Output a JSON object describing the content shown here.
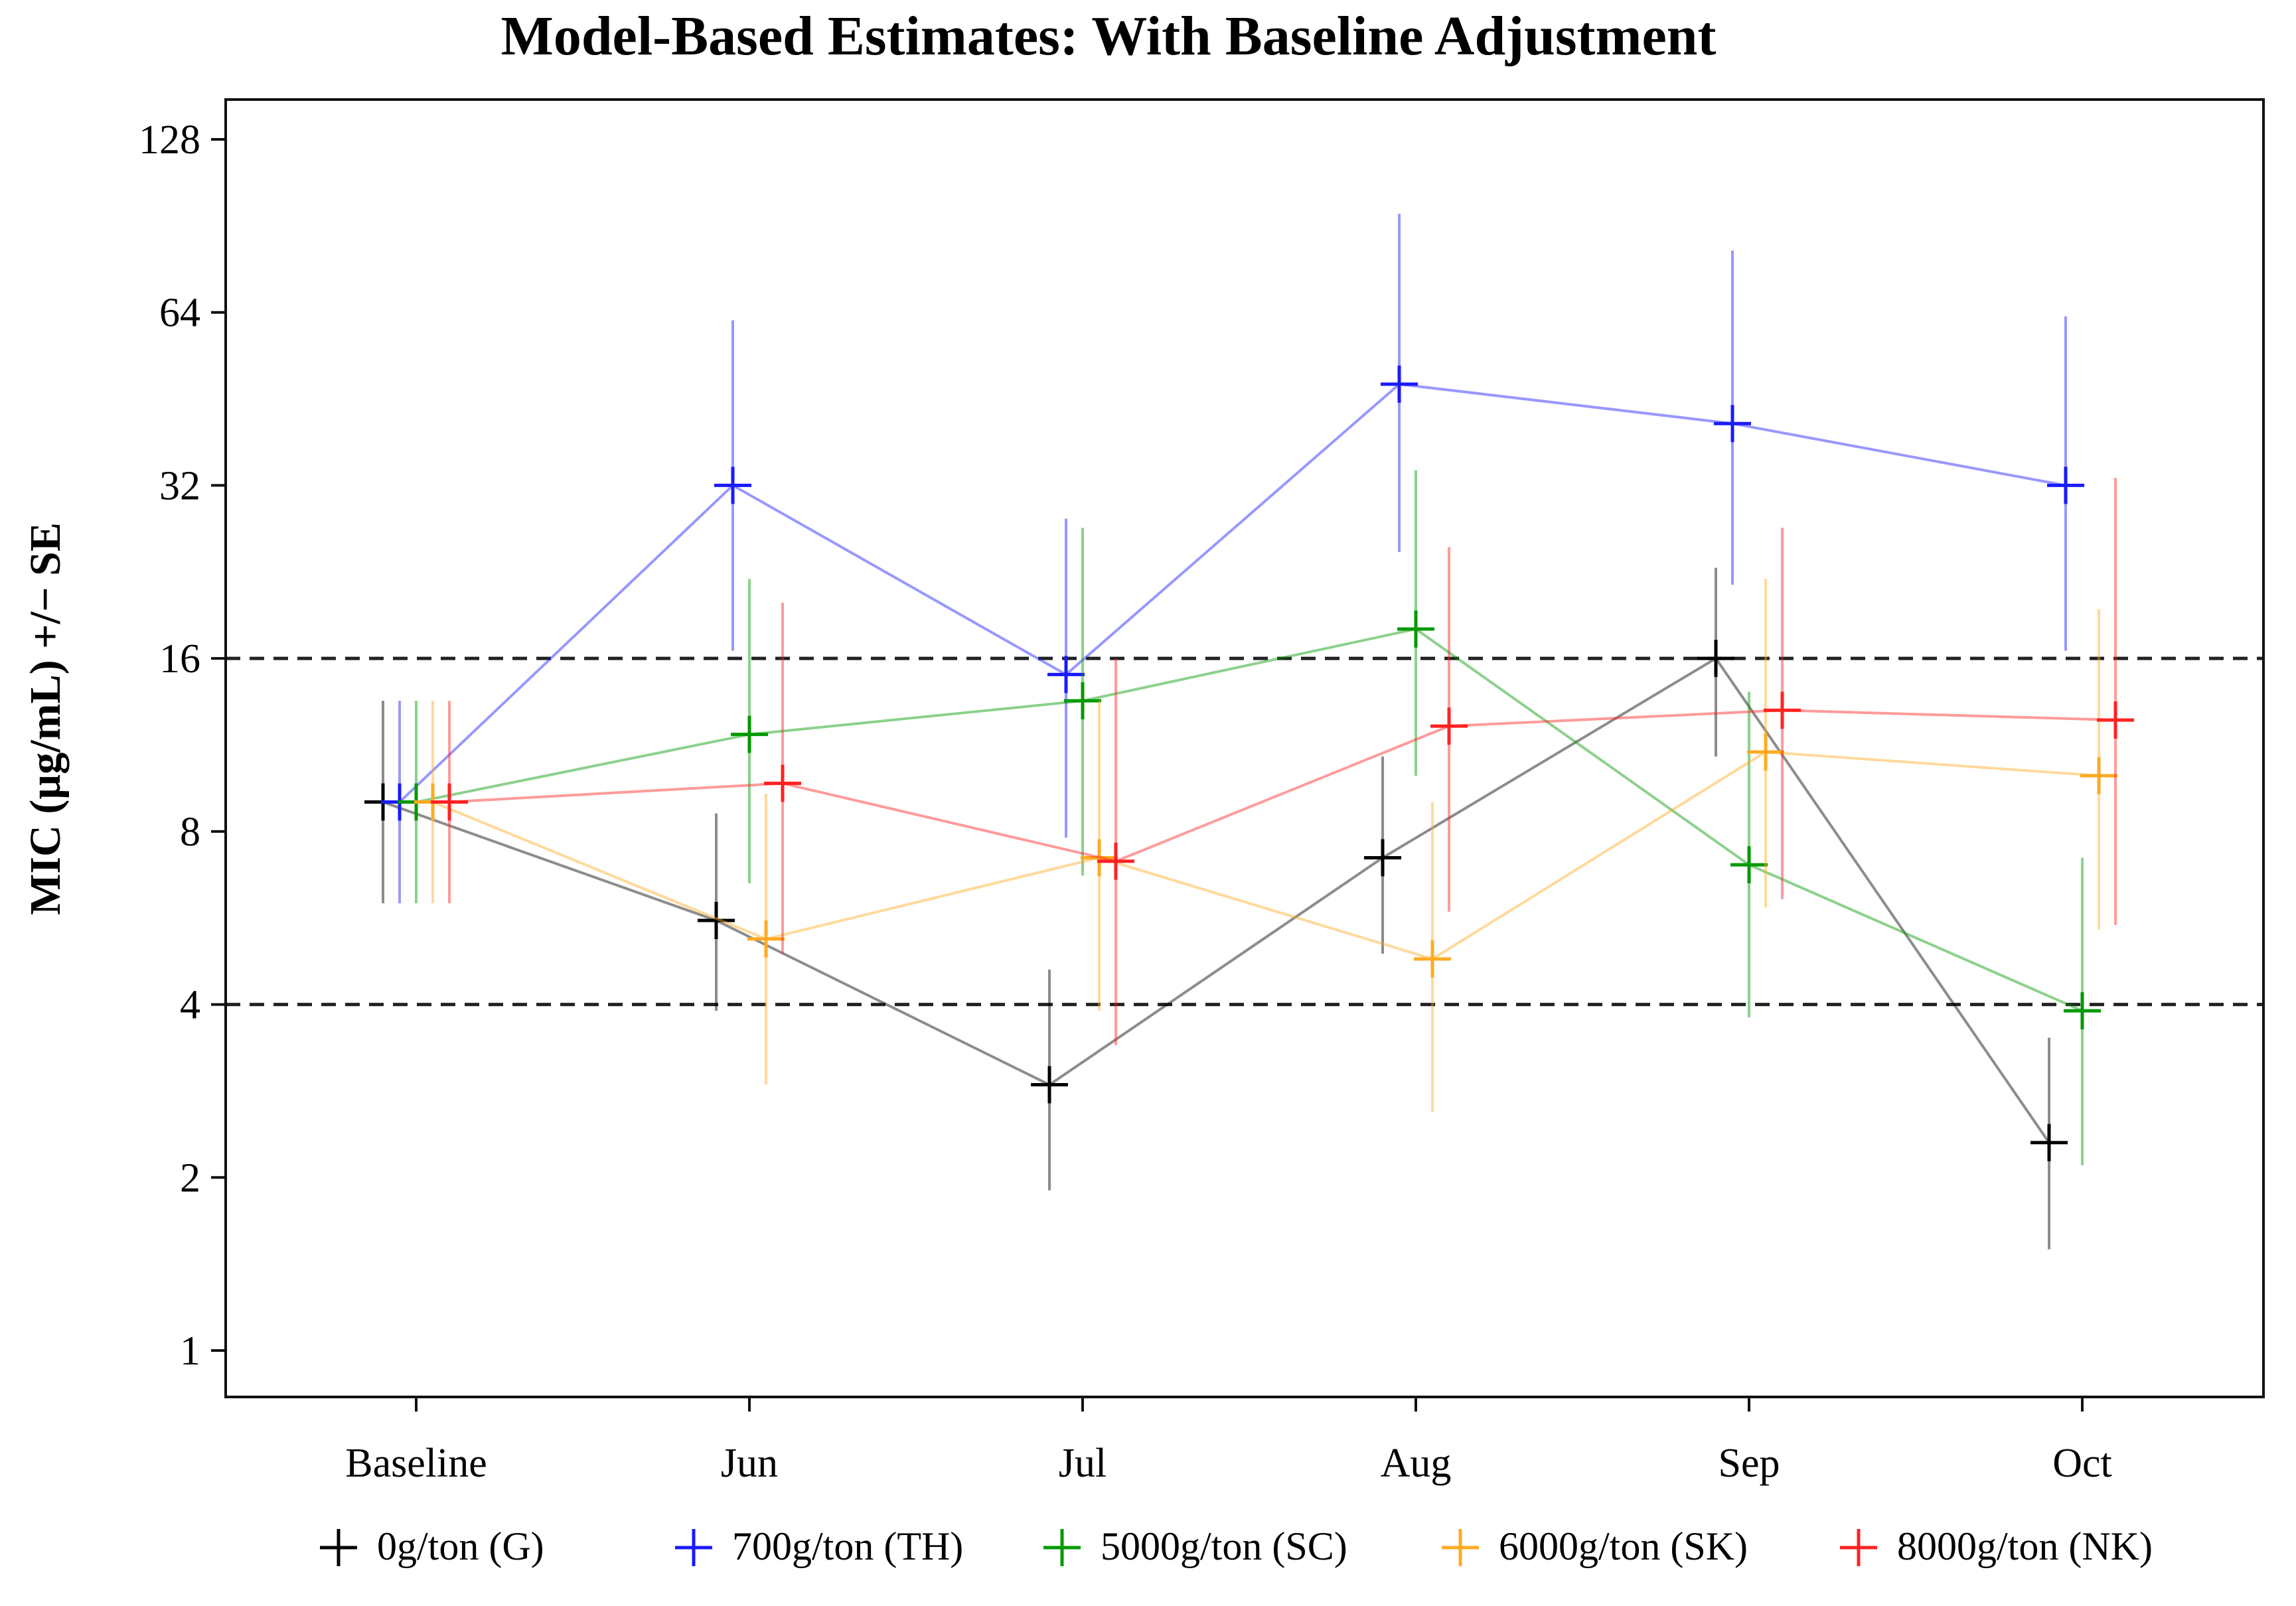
{
  "chart_data": {
    "type": "line",
    "title": "Model-Based Estimates: With Baseline Adjustment",
    "xlabel": "",
    "ylabel": "MIC (µg/mL) +/− SE",
    "yscale": "log2",
    "ylim": [
      0.8,
      150
    ],
    "y_ticks": [
      1,
      2,
      4,
      8,
      16,
      32,
      64,
      128
    ],
    "y_tick_labels": [
      "1",
      "2",
      "4",
      "8",
      "16",
      "32",
      "64",
      "128"
    ],
    "categories": [
      "Baseline",
      "Jun",
      "Jul",
      "Aug",
      "Sep",
      "Oct"
    ],
    "reference_lines": [
      4,
      16
    ],
    "legend_position": "bottom",
    "series": [
      {
        "name": "0g/ton (G)",
        "color": "#000000",
        "offset": -1,
        "values": [
          9.0,
          5.6,
          2.9,
          7.2,
          16.0,
          2.3
        ],
        "lower": [
          6.0,
          3.9,
          1.9,
          4.9,
          10.8,
          1.5
        ],
        "upper": [
          13.5,
          8.6,
          4.6,
          10.8,
          23.0,
          3.5
        ]
      },
      {
        "name": "700g/ton (TH)",
        "color": "#1a1aff",
        "offset": -0.5,
        "values": [
          9.0,
          32.0,
          15.0,
          48.0,
          41.0,
          32.0
        ],
        "lower": [
          6.0,
          16.5,
          7.8,
          24.5,
          21.5,
          16.5
        ],
        "upper": [
          13.5,
          62.0,
          28.0,
          95.0,
          82.0,
          63.0
        ]
      },
      {
        "name": "5000g/ton (SC)",
        "color": "#009900",
        "offset": 0,
        "values": [
          9.0,
          11.8,
          13.5,
          18.0,
          7.0,
          3.9
        ],
        "lower": [
          6.0,
          6.5,
          6.7,
          10.0,
          3.8,
          2.1
        ],
        "upper": [
          13.5,
          22.0,
          27.0,
          34.0,
          14.0,
          7.2
        ]
      },
      {
        "name": "6000g/ton (SK)",
        "color": "#ffaa22",
        "offset": 0.5,
        "values": [
          9.0,
          5.2,
          7.2,
          4.8,
          11.0,
          10.0
        ],
        "lower": [
          6.0,
          2.9,
          3.9,
          2.6,
          5.9,
          5.4
        ],
        "upper": [
          13.5,
          9.3,
          13.5,
          9.0,
          22.0,
          19.5
        ]
      },
      {
        "name": "8000g/ton (NK)",
        "color": "#ff2222",
        "offset": 1,
        "values": [
          9.0,
          9.7,
          7.1,
          12.2,
          13.0,
          12.5
        ],
        "lower": [
          6.0,
          4.9,
          3.4,
          5.8,
          6.1,
          5.5
        ],
        "upper": [
          13.5,
          20.0,
          16.0,
          25.0,
          27.0,
          33.0
        ]
      }
    ]
  }
}
